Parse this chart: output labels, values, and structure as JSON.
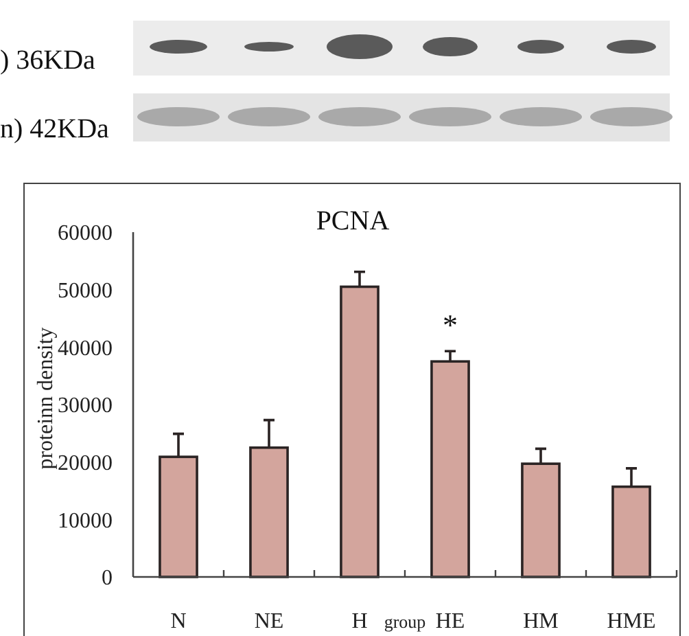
{
  "chart_data": {
    "type": "bar",
    "title": "PCNA",
    "xlabel": "group",
    "ylabel": "proteinn density",
    "categories": [
      "N",
      "NE",
      "H",
      "HE",
      "HM",
      "HME"
    ],
    "values": [
      20900,
      22500,
      50500,
      37500,
      19700,
      15700
    ],
    "errors": [
      [
        20900,
        24900
      ],
      [
        22500,
        27300
      ],
      [
        50500,
        53100
      ],
      [
        37500,
        39300
      ],
      [
        19700,
        22300
      ],
      [
        15700,
        18900
      ]
    ],
    "color": "#d3a59d",
    "ylim": [
      0,
      60000
    ],
    "yticks": [
      0,
      10000,
      20000,
      30000,
      40000,
      50000,
      60000
    ],
    "annotations": [
      ") 36KDa",
      "n) 42KDa",
      "*"
    ]
  }
}
